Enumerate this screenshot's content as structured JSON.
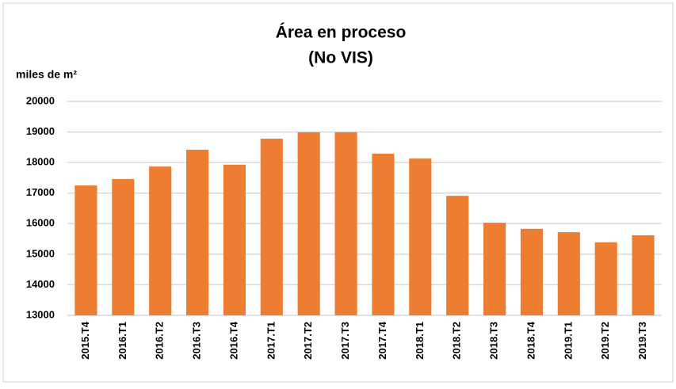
{
  "chart_data": {
    "type": "bar",
    "title": "Área en proceso",
    "subtitle": "(No VIS)",
    "y_label": "miles de m²",
    "categories": [
      "2015.T4",
      "2016.T1",
      "2016.T2",
      "2016.T3",
      "2016.T4",
      "2017.T1",
      "2017.T2",
      "2017.T3",
      "2017.T4",
      "2018.T1",
      "2018.T2",
      "2018.T3",
      "2018.T4",
      "2019.T1",
      "2019.T2",
      "2019.T3"
    ],
    "values": [
      17250,
      17460,
      17870,
      18420,
      17930,
      18780,
      18990,
      18990,
      18290,
      18130,
      16910,
      16030,
      15830,
      15720,
      15390,
      15620
    ],
    "color": "#ed7d31",
    "ylim": [
      13000,
      20000
    ],
    "yticks": [
      13000,
      14000,
      15000,
      16000,
      17000,
      18000,
      19000,
      20000
    ],
    "grid": true
  }
}
